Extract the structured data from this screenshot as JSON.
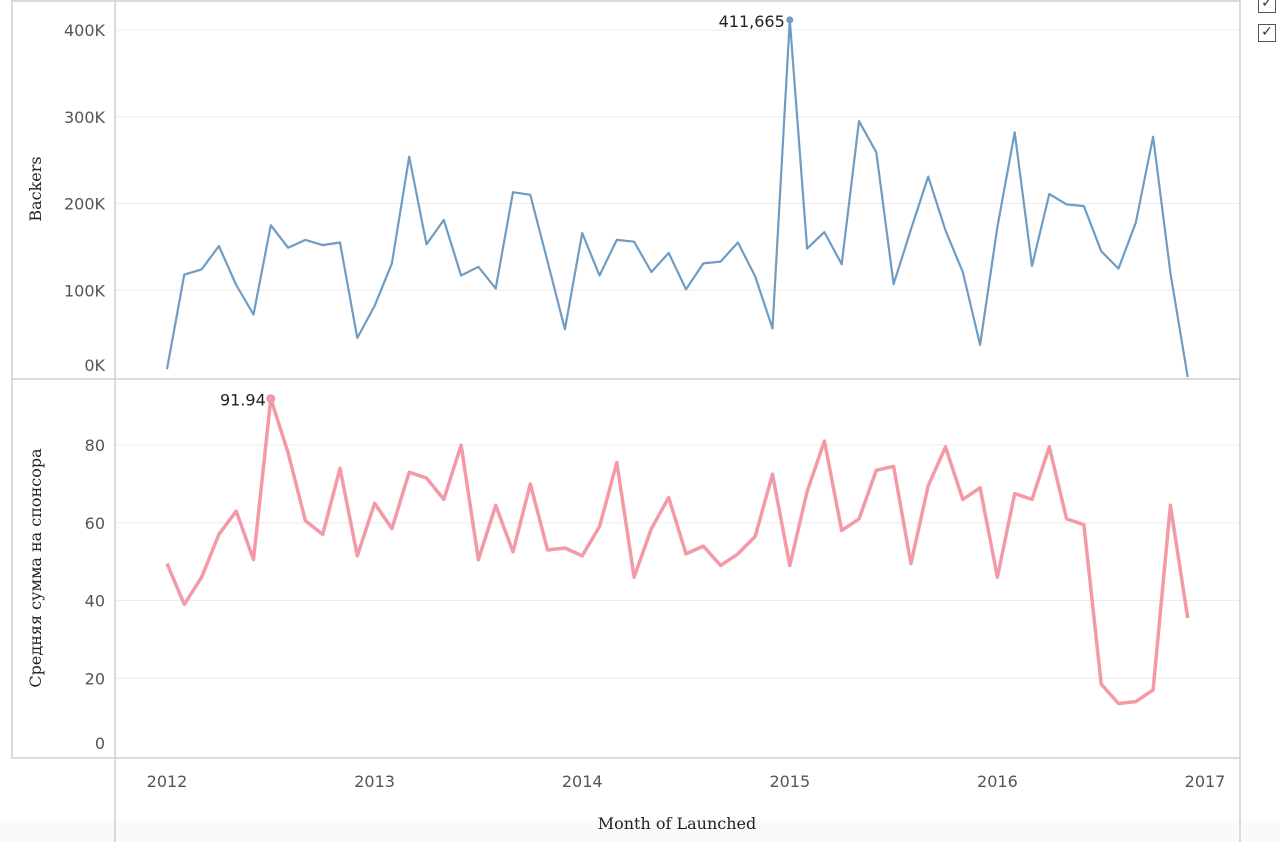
{
  "legend": {
    "check_1": "✓",
    "check_2": "✓"
  },
  "chart_data": [
    {
      "type": "line",
      "ylabel": "Backers",
      "ylim": [
        0,
        420000
      ],
      "yticks": [
        0,
        100000,
        200000,
        300000,
        400000
      ],
      "ytick_labels": [
        "0K",
        "100K",
        "200K",
        "300K",
        "400K"
      ],
      "color": "#6f9cc3",
      "peak_label": "411,665",
      "x": [
        "2012-01",
        "2012-02",
        "2012-03",
        "2012-04",
        "2012-05",
        "2012-06",
        "2012-07",
        "2012-08",
        "2012-09",
        "2012-10",
        "2012-11",
        "2012-12",
        "2013-01",
        "2013-02",
        "2013-03",
        "2013-04",
        "2013-05",
        "2013-06",
        "2013-07",
        "2013-08",
        "2013-09",
        "2013-10",
        "2013-11",
        "2013-12",
        "2014-01",
        "2014-02",
        "2014-03",
        "2014-04",
        "2014-05",
        "2014-06",
        "2014-07",
        "2014-08",
        "2014-09",
        "2014-10",
        "2014-11",
        "2014-12",
        "2015-01",
        "2015-02",
        "2015-03",
        "2015-04",
        "2015-05",
        "2015-06",
        "2015-07",
        "2015-08",
        "2015-09",
        "2015-10",
        "2015-11",
        "2015-12",
        "2016-01",
        "2016-02",
        "2016-03",
        "2016-04",
        "2016-05",
        "2016-06",
        "2016-07",
        "2016-08",
        "2016-09",
        "2016-10",
        "2016-11",
        "2016-12"
      ],
      "values": [
        9000,
        118000,
        124000,
        151000,
        106000,
        72000,
        175000,
        149000,
        158000,
        152000,
        155000,
        45000,
        82000,
        131000,
        254000,
        153000,
        181000,
        117000,
        127000,
        102000,
        213000,
        210000,
        133000,
        55000,
        166000,
        117000,
        158000,
        156000,
        121000,
        143000,
        101000,
        131000,
        133000,
        155000,
        116000,
        56000,
        411665,
        148000,
        167000,
        130000,
        295000,
        259000,
        107000,
        170000,
        231000,
        169000,
        121000,
        37000,
        173000,
        282000,
        128000,
        211000,
        199000,
        197000,
        145000,
        125000,
        178000,
        277000,
        120000,
        0
      ]
    },
    {
      "type": "line",
      "ylabel": "Средняя сумма на спонсора",
      "xlabel": "Month of Launched",
      "ylim": [
        0,
        95
      ],
      "yticks": [
        0,
        20,
        40,
        60,
        80
      ],
      "ytick_labels": [
        "0",
        "20",
        "40",
        "60",
        "80"
      ],
      "color": "#f49aa6",
      "peak_label": "91.94",
      "x_ticks": [
        "2012",
        "2013",
        "2014",
        "2015",
        "2016",
        "2017"
      ],
      "x": [
        "2012-01",
        "2012-02",
        "2012-03",
        "2012-04",
        "2012-05",
        "2012-06",
        "2012-07",
        "2012-08",
        "2012-09",
        "2012-10",
        "2012-11",
        "2012-12",
        "2013-01",
        "2013-02",
        "2013-03",
        "2013-04",
        "2013-05",
        "2013-06",
        "2013-07",
        "2013-08",
        "2013-09",
        "2013-10",
        "2013-11",
        "2013-12",
        "2014-01",
        "2014-02",
        "2014-03",
        "2014-04",
        "2014-05",
        "2014-06",
        "2014-07",
        "2014-08",
        "2014-09",
        "2014-10",
        "2014-11",
        "2014-12",
        "2015-01",
        "2015-02",
        "2015-03",
        "2015-04",
        "2015-05",
        "2015-06",
        "2015-07",
        "2015-08",
        "2015-09",
        "2015-10",
        "2015-11",
        "2015-12",
        "2016-01",
        "2016-02",
        "2016-03",
        "2016-04",
        "2016-05",
        "2016-06",
        "2016-07",
        "2016-08",
        "2016-09",
        "2016-10",
        "2016-11",
        "2016-12"
      ],
      "values": [
        49.5,
        39,
        46,
        57,
        63,
        50.5,
        91.94,
        78,
        60.5,
        57,
        74,
        51.5,
        65,
        58.5,
        73,
        71.5,
        66,
        80,
        50.5,
        64.5,
        52.5,
        70,
        53,
        53.5,
        51.5,
        59,
        75.5,
        46,
        58.5,
        66.5,
        52,
        54,
        49,
        52,
        56.5,
        72.5,
        49,
        68,
        81,
        58,
        61,
        73.5,
        74.5,
        49.5,
        69.5,
        79.5,
        66,
        69,
        46,
        67.5,
        66,
        79.5,
        61,
        59.5,
        18.5,
        13.5,
        14,
        17,
        64.5,
        35.5
      ]
    }
  ]
}
